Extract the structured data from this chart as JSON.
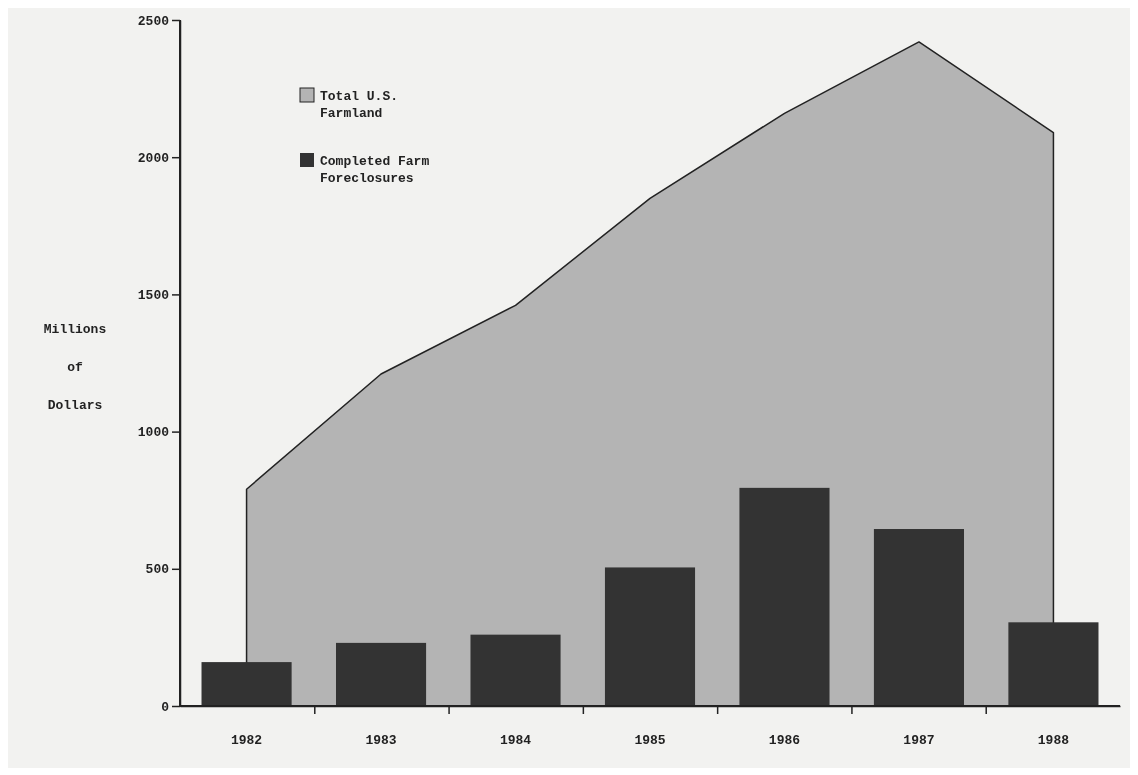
{
  "chart_data": {
    "type": "bar",
    "ylabel": "Millions of Dollars",
    "categories": [
      "1982",
      "1983",
      "1984",
      "1985",
      "1986",
      "1987",
      "1988"
    ],
    "series": [
      {
        "name": "Total U.S. Farmland",
        "type": "area",
        "color": "#b4b4b4",
        "values": [
          790,
          1210,
          1460,
          1850,
          2160,
          2420,
          2090
        ]
      },
      {
        "name": "Completed Farm Foreclosures",
        "color": "#333333",
        "values": [
          160,
          230,
          260,
          505,
          795,
          645,
          305
        ]
      }
    ],
    "ylim": [
      0,
      2500
    ],
    "yticks": [
      0,
      500,
      1000,
      1500,
      2000,
      2500
    ],
    "legend": "top left",
    "grid": false
  }
}
